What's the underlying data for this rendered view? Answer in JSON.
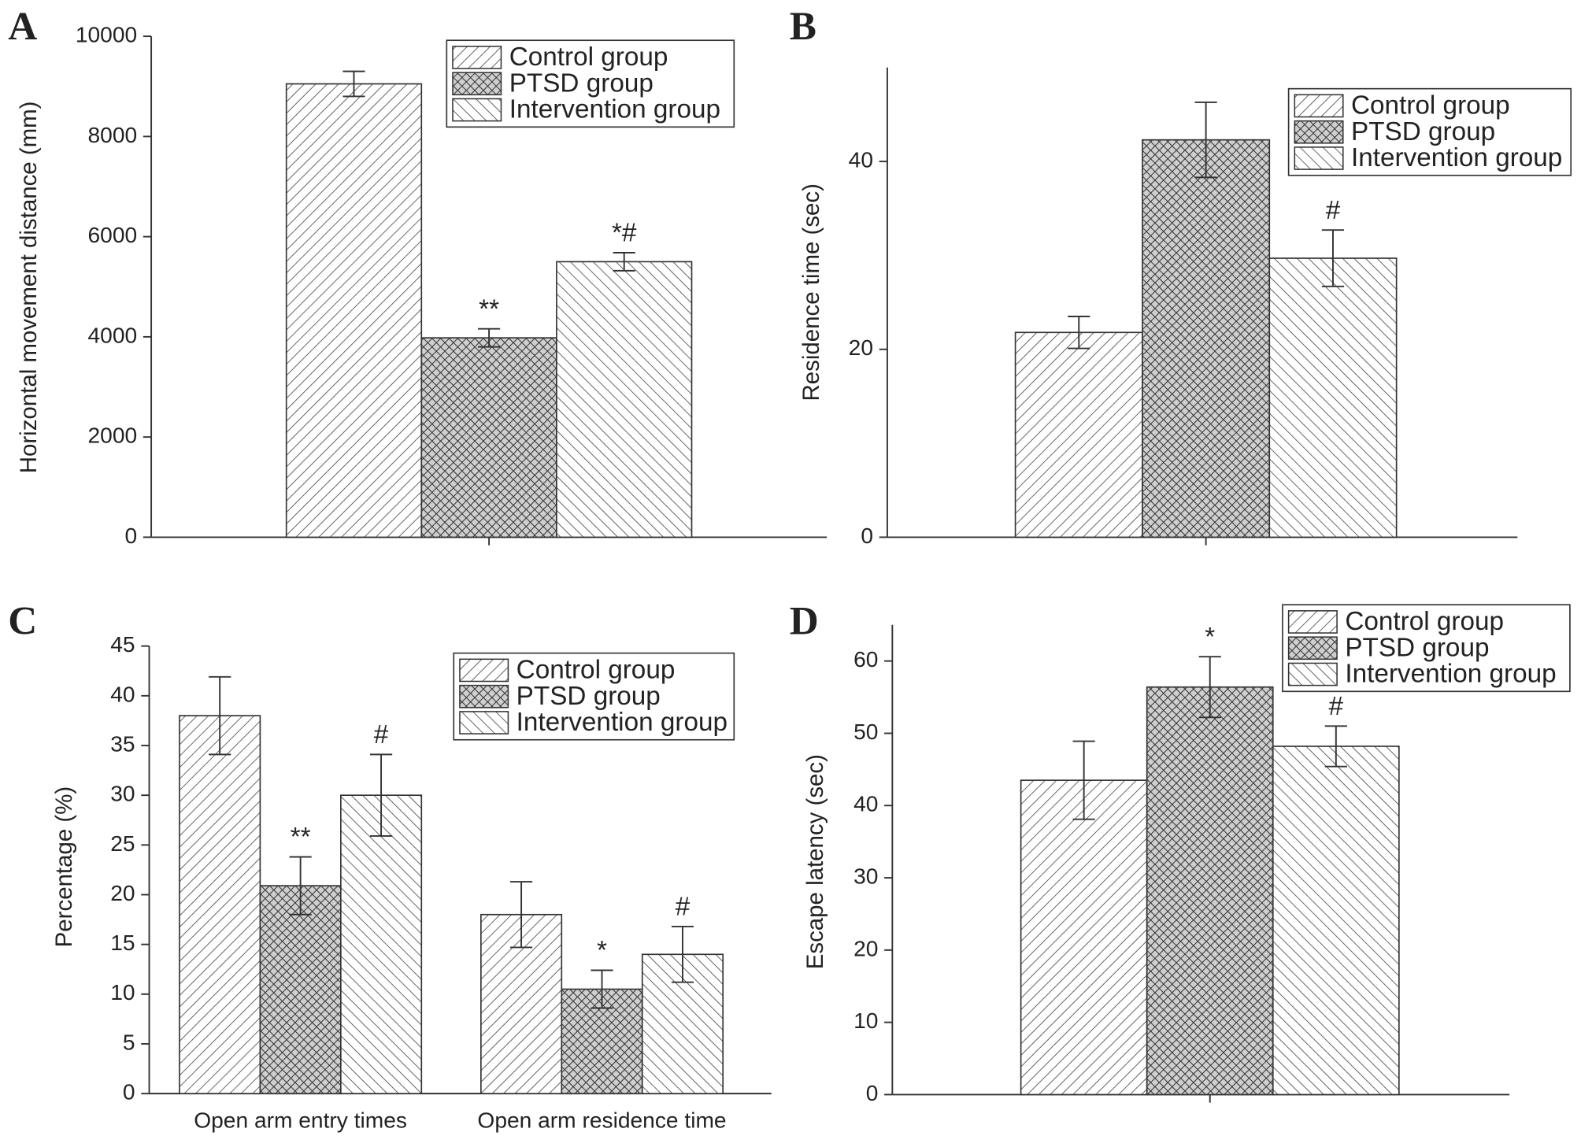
{
  "chart_data": [
    {
      "type": "bar",
      "label": "A",
      "ylabel": "Horizontal movement distance (mm)",
      "categories": [
        null
      ],
      "ylim": [
        0,
        10000
      ],
      "yticks": [
        0,
        2000,
        4000,
        6000,
        8000,
        10000
      ],
      "legend": "upper right",
      "series": [
        {
          "name": "Control group",
          "hatch": "diagonal-up",
          "color": "#555555",
          "values": [
            9050
          ],
          "errors": [
            250
          ]
        },
        {
          "name": "PTSD group",
          "hatch": "crosshatch",
          "color": "#333333",
          "values": [
            3980
          ],
          "errors": [
            180
          ],
          "annotations": [
            "**"
          ]
        },
        {
          "name": "Intervention group",
          "hatch": "diagonal-down",
          "color": "#555555",
          "values": [
            5500
          ],
          "errors": [
            180
          ],
          "annotations": [
            "*#"
          ]
        }
      ]
    },
    {
      "type": "bar",
      "label": "B",
      "ylabel": "Residence time (sec)",
      "categories": [
        null
      ],
      "ylim": [
        0,
        50
      ],
      "yticks": [
        0,
        20,
        40
      ],
      "legend": "upper right",
      "series": [
        {
          "name": "Control group",
          "hatch": "diagonal-up",
          "color": "#555555",
          "values": [
            21.8
          ],
          "errors": [
            1.7
          ]
        },
        {
          "name": "PTSD group",
          "hatch": "crosshatch",
          "color": "#333333",
          "values": [
            42.3
          ],
          "errors": [
            4
          ]
        },
        {
          "name": "Intervention group",
          "hatch": "diagonal-down",
          "color": "#555555",
          "values": [
            29.7
          ],
          "errors": [
            3
          ],
          "annotations": [
            "#"
          ]
        }
      ],
      "series_annotations_note_free": null
    },
    {
      "type": "bar",
      "label": "C",
      "ylabel": "Percentage (%)",
      "categories": [
        "Open arm entry times",
        "Open arm residence time"
      ],
      "ylim": [
        0,
        45
      ],
      "yticks": [
        0,
        5,
        10,
        15,
        20,
        25,
        30,
        35,
        40,
        45
      ],
      "legend": "upper right",
      "series": [
        {
          "name": "Control group",
          "hatch": "diagonal-up",
          "color": "#555555",
          "values": [
            38,
            18
          ],
          "errors": [
            3.9,
            3.3
          ]
        },
        {
          "name": "PTSD group",
          "hatch": "crosshatch",
          "color": "#333333",
          "values": [
            20.9,
            10.5
          ],
          "errors": [
            2.9,
            1.9
          ],
          "annotations": [
            "**",
            "*"
          ]
        },
        {
          "name": "Intervention group",
          "hatch": "diagonal-down",
          "color": "#555555",
          "values": [
            30,
            14
          ],
          "errors": [
            4.1,
            2.8
          ],
          "annotations": [
            "#",
            "#"
          ]
        }
      ]
    },
    {
      "type": "bar",
      "label": "D",
      "ylabel": "Escape latency  (sec)",
      "categories": [
        null
      ],
      "ylim": [
        0,
        65
      ],
      "yticks": [
        0,
        10,
        20,
        30,
        40,
        50,
        60
      ],
      "legend": "upper right",
      "series": [
        {
          "name": "Control group",
          "hatch": "diagonal-up",
          "color": "#555555",
          "values": [
            43.5
          ],
          "errors": [
            5.4
          ]
        },
        {
          "name": "PTSD group",
          "hatch": "crosshatch",
          "color": "#333333",
          "values": [
            56.4
          ],
          "errors": [
            4.2
          ],
          "annotations": [
            "*"
          ]
        },
        {
          "name": "Intervention group",
          "hatch": "diagonal-down",
          "color": "#555555",
          "values": [
            48.2
          ],
          "errors": [
            2.8
          ],
          "annotations": [
            "#"
          ]
        }
      ]
    }
  ]
}
